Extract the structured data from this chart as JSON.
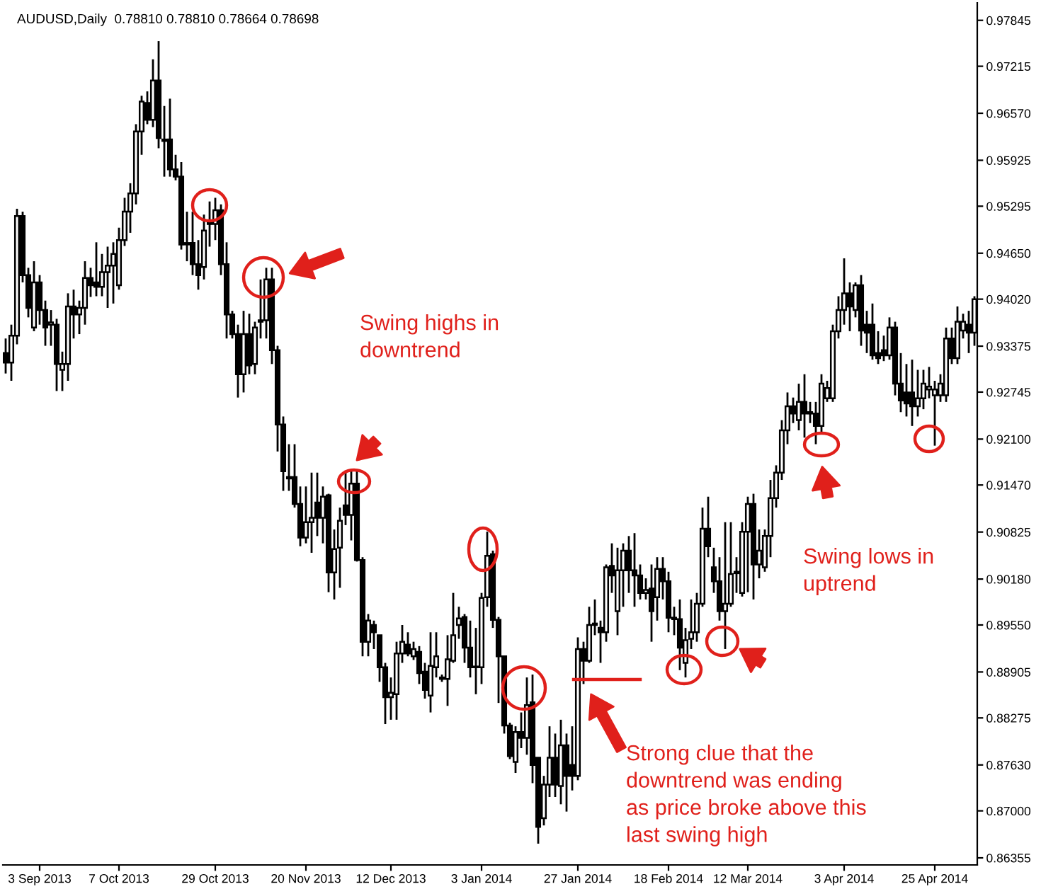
{
  "chart_data": {
    "type": "candlestick",
    "title": "AUDUSD,Daily  0.78810 0.78810 0.78664 0.78698",
    "categories": [
      null,
      null,
      null,
      null,
      null,
      null,
      "3 Sep 2013",
      null,
      null,
      null,
      null,
      null,
      null,
      null,
      null,
      null,
      null,
      null,
      null,
      null,
      "7 Oct 2013",
      null,
      null,
      null,
      null,
      null,
      null,
      null,
      null,
      null,
      null,
      null,
      null,
      null,
      null,
      null,
      null,
      "29 Oct 2013",
      null,
      null,
      null,
      null,
      null,
      null,
      null,
      null,
      null,
      null,
      null,
      null,
      null,
      null,
      null,
      "20 Nov 2013",
      null,
      null,
      null,
      null,
      null,
      null,
      null,
      null,
      null,
      null,
      null,
      null,
      null,
      null,
      "12 Dec 2013",
      null,
      null,
      null,
      null,
      null,
      null,
      null,
      null,
      null,
      null,
      null,
      null,
      null,
      null,
      null,
      "3 Jan 2014",
      null,
      null,
      null,
      null,
      null,
      null,
      null,
      null,
      null,
      null,
      null,
      null,
      null,
      null,
      null,
      null,
      "27 Jan 2014",
      null,
      null,
      null,
      null,
      null,
      null,
      null,
      null,
      null,
      null,
      null,
      null,
      null,
      null,
      null,
      "18 Feb 2014",
      null,
      null,
      null,
      null,
      null,
      null,
      null,
      null,
      null,
      null,
      null,
      null,
      null,
      "12 Mar 2014",
      null,
      null,
      null,
      null,
      null,
      null,
      null,
      null,
      null,
      null,
      null,
      null,
      null,
      null,
      null,
      null,
      "3 Apr 2014",
      null,
      null,
      null,
      null,
      null,
      null,
      null,
      null,
      null,
      null,
      null,
      null,
      null,
      null,
      null,
      "25 Apr 2014",
      null,
      null,
      null,
      null,
      null,
      null,
      null
    ],
    "ohlc": [
      [
        0.9328,
        0.9348,
        0.93,
        0.9315
      ],
      [
        0.9315,
        0.9367,
        0.929,
        0.9352
      ],
      [
        0.9352,
        0.9526,
        0.934,
        0.9516
      ],
      [
        0.9516,
        0.9522,
        0.9425,
        0.9435
      ],
      [
        0.9435,
        0.9445,
        0.9377,
        0.939
      ],
      [
        0.9363,
        0.9454,
        0.9358,
        0.9425
      ],
      [
        0.9425,
        0.9435,
        0.9367,
        0.9387
      ],
      [
        0.9387,
        0.94,
        0.9338,
        0.9363
      ],
      [
        0.9367,
        0.9387,
        0.9338,
        0.937
      ],
      [
        0.9367,
        0.9375,
        0.9276,
        0.9313
      ],
      [
        0.9305,
        0.933,
        0.9276,
        0.9313
      ],
      [
        0.9313,
        0.941,
        0.929,
        0.9392
      ],
      [
        0.9392,
        0.9415,
        0.9348,
        0.9381
      ],
      [
        0.9381,
        0.94,
        0.9354,
        0.939
      ],
      [
        0.939,
        0.9454,
        0.9367,
        0.9431
      ],
      [
        0.9431,
        0.9445,
        0.9405,
        0.9421
      ],
      [
        0.9425,
        0.948,
        0.9406,
        0.9419
      ],
      [
        0.9419,
        0.9464,
        0.9406,
        0.9439
      ],
      [
        0.9439,
        0.9474,
        0.939,
        0.9448
      ],
      [
        0.9448,
        0.948,
        0.9396,
        0.9464
      ],
      [
        0.9421,
        0.95,
        0.9415,
        0.9483
      ],
      [
        0.9483,
        0.9541,
        0.9475,
        0.9522
      ],
      [
        0.9522,
        0.9561,
        0.9493,
        0.9547
      ],
      [
        0.9547,
        0.9642,
        0.9532,
        0.9632
      ],
      [
        0.9632,
        0.9681,
        0.96,
        0.9673
      ],
      [
        0.9671,
        0.9687,
        0.9642,
        0.9648
      ],
      [
        0.9648,
        0.9731,
        0.9638,
        0.9702
      ],
      [
        0.9702,
        0.9756,
        0.9609,
        0.9623
      ],
      [
        0.9621,
        0.9667,
        0.957,
        0.9619
      ],
      [
        0.9621,
        0.9677,
        0.957,
        0.958
      ],
      [
        0.958,
        0.96,
        0.9565,
        0.957
      ],
      [
        0.957,
        0.959,
        0.947,
        0.9477
      ],
      [
        0.9477,
        0.9522,
        0.9454,
        0.9479
      ],
      [
        0.9479,
        0.9522,
        0.9435,
        0.945
      ],
      [
        0.945,
        0.9483,
        0.9415,
        0.9435
      ],
      [
        0.9446,
        0.9518,
        0.9429,
        0.9496
      ],
      [
        0.9505,
        0.9536,
        0.9474,
        0.9507
      ],
      [
        0.9505,
        0.9541,
        0.9483,
        0.9524
      ],
      [
        0.9524,
        0.9532,
        0.9435,
        0.945
      ],
      [
        0.945,
        0.948,
        0.9348,
        0.9381
      ],
      [
        0.9381,
        0.9386,
        0.9348,
        0.9354
      ],
      [
        0.9354,
        0.9367,
        0.9267,
        0.9299
      ],
      [
        0.9299,
        0.9386,
        0.9274,
        0.9354
      ],
      [
        0.9354,
        0.9382,
        0.9299,
        0.9311
      ],
      [
        0.9313,
        0.9371,
        0.9299,
        0.9363
      ],
      [
        0.9371,
        0.9429,
        0.9348,
        0.9373
      ],
      [
        0.9373,
        0.9445,
        0.9348,
        0.9429
      ],
      [
        0.9429,
        0.9445,
        0.9313,
        0.9332
      ],
      [
        0.9332,
        0.9338,
        0.9193,
        0.923
      ],
      [
        0.923,
        0.9241,
        0.9139,
        0.9166
      ],
      [
        0.9158,
        0.9203,
        0.9139,
        0.9156
      ],
      [
        0.9158,
        0.9203,
        0.9116,
        0.9121
      ],
      [
        0.9121,
        0.9145,
        0.9063,
        0.9075
      ],
      [
        0.9075,
        0.9145,
        0.9067,
        0.9096
      ],
      [
        0.9096,
        0.9164,
        0.9054,
        0.9102
      ],
      [
        0.9123,
        0.9164,
        0.9077,
        0.9102
      ],
      [
        0.9102,
        0.9145,
        0.9067,
        0.9131
      ],
      [
        0.9133,
        0.9135,
        0.9,
        0.9027
      ],
      [
        0.9027,
        0.9086,
        0.899,
        0.9059
      ],
      [
        0.9061,
        0.9116,
        0.9006,
        0.9098
      ],
      [
        0.9119,
        0.9164,
        0.9092,
        0.9106
      ],
      [
        0.9106,
        0.9168,
        0.9071,
        0.9149
      ],
      [
        0.9149,
        0.9168,
        0.9042,
        0.9044
      ],
      [
        0.9044,
        0.9048,
        0.8912,
        0.8932
      ],
      [
        0.8932,
        0.897,
        0.8912,
        0.8961
      ],
      [
        0.8955,
        0.8961,
        0.8922,
        0.8945
      ],
      [
        0.8941,
        0.8941,
        0.8877,
        0.8897
      ],
      [
        0.8897,
        0.8903,
        0.8819,
        0.8856
      ],
      [
        0.8856,
        0.8883,
        0.8825,
        0.8862
      ],
      [
        0.886,
        0.8932,
        0.8825,
        0.8916
      ],
      [
        0.8916,
        0.8955,
        0.8903,
        0.8932
      ],
      [
        0.8928,
        0.8945,
        0.8912,
        0.8916
      ],
      [
        0.8912,
        0.8932,
        0.8907,
        0.8922
      ],
      [
        0.8918,
        0.8926,
        0.8874,
        0.8889
      ],
      [
        0.8891,
        0.8903,
        0.8854,
        0.8866
      ],
      [
        0.8858,
        0.8945,
        0.8835,
        0.8899
      ],
      [
        0.8897,
        0.8945,
        0.8883,
        0.8912
      ],
      [
        0.8881,
        0.8887,
        0.8877,
        0.8883
      ],
      [
        0.8881,
        0.8941,
        0.8844,
        0.8908
      ],
      [
        0.8906,
        0.8999,
        0.8903,
        0.8941
      ],
      [
        0.8955,
        0.898,
        0.8936,
        0.8964
      ],
      [
        0.8966,
        0.897,
        0.8903,
        0.8924
      ],
      [
        0.8924,
        0.8961,
        0.8883,
        0.8897
      ],
      [
        0.8897,
        0.8951,
        0.886,
        0.8898
      ],
      [
        0.8897,
        0.8999,
        0.8874,
        0.8992
      ],
      [
        0.8993,
        0.9083,
        0.898,
        0.905
      ],
      [
        0.9052,
        0.9057,
        0.8951,
        0.8962
      ],
      [
        0.8962,
        0.8966,
        0.8848,
        0.8912
      ],
      [
        0.8912,
        0.8912,
        0.8806,
        0.8817
      ],
      [
        0.8817,
        0.8821,
        0.8771,
        0.8775
      ],
      [
        0.8767,
        0.8816,
        0.8752,
        0.8808
      ],
      [
        0.8808,
        0.8835,
        0.8786,
        0.88
      ],
      [
        0.88,
        0.8883,
        0.8777,
        0.8845
      ],
      [
        0.8849,
        0.8887,
        0.8738,
        0.8763
      ],
      [
        0.8773,
        0.8773,
        0.8655,
        0.8678
      ],
      [
        0.869,
        0.8748,
        0.868,
        0.8736
      ],
      [
        0.8736,
        0.8816,
        0.8719,
        0.8773
      ],
      [
        0.8773,
        0.8806,
        0.8719,
        0.8736
      ],
      [
        0.8734,
        0.8825,
        0.8709,
        0.879
      ],
      [
        0.879,
        0.8806,
        0.8699,
        0.8748
      ],
      [
        0.8763,
        0.8816,
        0.8728,
        0.8748
      ],
      [
        0.8748,
        0.8938,
        0.8742,
        0.8922
      ],
      [
        0.8922,
        0.8932,
        0.8874,
        0.8906
      ],
      [
        0.8906,
        0.898,
        0.8903,
        0.8955
      ],
      [
        0.8955,
        0.899,
        0.8941,
        0.8957
      ],
      [
        0.8951,
        0.8961,
        0.8903,
        0.8945
      ],
      [
        0.8945,
        0.9038,
        0.8932,
        0.9034
      ],
      [
        0.9036,
        0.9067,
        0.8999,
        0.9023
      ],
      [
        0.8974,
        0.9061,
        0.8941,
        0.903
      ],
      [
        0.903,
        0.9067,
        0.898,
        0.9057
      ],
      [
        0.9057,
        0.9077,
        0.8999,
        0.903
      ],
      [
        0.903,
        0.9081,
        0.898,
        0.9023
      ],
      [
        0.9023,
        0.9038,
        0.899,
        0.8999
      ],
      [
        0.8999,
        0.9019,
        0.899,
        0.9003
      ],
      [
        0.9005,
        0.9038,
        0.8932,
        0.8974
      ],
      [
        0.8993,
        0.9048,
        0.8961,
        0.9032
      ],
      [
        0.9032,
        0.9048,
        0.899,
        0.9015
      ],
      [
        0.9015,
        0.9028,
        0.8945,
        0.8965
      ],
      [
        0.8965,
        0.898,
        0.8941,
        0.8963
      ],
      [
        0.8963,
        0.899,
        0.8893,
        0.8924
      ],
      [
        0.8903,
        0.8951,
        0.8883,
        0.8934
      ],
      [
        0.8936,
        0.899,
        0.8922,
        0.8945
      ],
      [
        0.8945,
        0.8999,
        0.8932,
        0.8984
      ],
      [
        0.8984,
        0.9116,
        0.898,
        0.9087
      ],
      [
        0.9087,
        0.9131,
        0.9048,
        0.9063
      ],
      [
        0.9034,
        0.9061,
        0.8999,
        0.9015
      ],
      [
        0.9015,
        0.9048,
        0.8961,
        0.8974
      ],
      [
        0.8974,
        0.9096,
        0.8922,
        0.8984
      ],
      [
        0.8984,
        0.9096,
        0.898,
        0.9025
      ],
      [
        0.9026,
        0.9048,
        0.8999,
        0.9028
      ],
      [
        0.8999,
        0.9096,
        0.8994,
        0.9083
      ],
      [
        0.9083,
        0.9131,
        0.9,
        0.9121
      ],
      [
        0.9121,
        0.9135,
        0.899,
        0.9038
      ],
      [
        0.9038,
        0.9086,
        0.9019,
        0.9057
      ],
      [
        0.9034,
        0.9086,
        0.9028,
        0.9077
      ],
      [
        0.9077,
        0.9154,
        0.9048,
        0.9129
      ],
      [
        0.9129,
        0.9174,
        0.9116,
        0.9164
      ],
      [
        0.9164,
        0.9236,
        0.9154,
        0.9222
      ],
      [
        0.9222,
        0.9274,
        0.9203,
        0.9255
      ],
      [
        0.9255,
        0.9267,
        0.9232,
        0.9245
      ],
      [
        0.9236,
        0.9286,
        0.9222,
        0.9261
      ],
      [
        0.9261,
        0.9299,
        0.9212,
        0.9245
      ],
      [
        0.9245,
        0.9261,
        0.9232,
        0.9247
      ],
      [
        0.9245,
        0.9261,
        0.9203,
        0.9228
      ],
      [
        0.9228,
        0.9299,
        0.9218,
        0.9286
      ],
      [
        0.9266,
        0.929,
        0.9261,
        0.928
      ],
      [
        0.9266,
        0.9367,
        0.9261,
        0.9358
      ],
      [
        0.9358,
        0.9406,
        0.9348,
        0.9387
      ],
      [
        0.9387,
        0.9458,
        0.9367,
        0.941
      ],
      [
        0.941,
        0.9425,
        0.9358,
        0.9392
      ],
      [
        0.9387,
        0.9425,
        0.9377,
        0.9421
      ],
      [
        0.9421,
        0.9435,
        0.9338,
        0.9359
      ],
      [
        0.9367,
        0.9386,
        0.9328,
        0.9356
      ],
      [
        0.9367,
        0.9396,
        0.9319,
        0.9325
      ],
      [
        0.9328,
        0.9358,
        0.9313,
        0.9321
      ],
      [
        0.9332,
        0.9352,
        0.9317,
        0.9325
      ],
      [
        0.9325,
        0.9377,
        0.9319,
        0.9363
      ],
      [
        0.9363,
        0.9371,
        0.927,
        0.9286
      ],
      [
        0.9286,
        0.9328,
        0.9247,
        0.9263
      ],
      [
        0.9274,
        0.9313,
        0.9241,
        0.9259
      ],
      [
        0.9274,
        0.9319,
        0.9228,
        0.9255
      ],
      [
        0.9255,
        0.9305,
        0.9241,
        0.9266
      ],
      [
        0.9266,
        0.9305,
        0.9251,
        0.9286
      ],
      [
        0.9278,
        0.9309,
        0.9266,
        0.9282
      ],
      [
        0.927,
        0.929,
        0.9201,
        0.9278
      ],
      [
        0.927,
        0.9299,
        0.9261,
        0.9286
      ],
      [
        0.927,
        0.9363,
        0.9261,
        0.9348
      ],
      [
        0.9348,
        0.9363,
        0.9313,
        0.9321
      ],
      [
        0.9321,
        0.9392,
        0.9313,
        0.9371
      ],
      [
        0.9359,
        0.9382,
        0.9348,
        0.9371
      ],
      [
        0.9367,
        0.9386,
        0.9328,
        0.9356
      ],
      [
        0.9356,
        0.9406,
        0.9338,
        0.9402
      ]
    ],
    "ylim": [
      0.86258,
      0.98085
    ],
    "yticks": [
      {
        "value": 0.97845,
        "label": "0.97845"
      },
      {
        "value": 0.97215,
        "label": "0.97215"
      },
      {
        "value": 0.9657,
        "label": "0.96570"
      },
      {
        "value": 0.95925,
        "label": "0.95925"
      },
      {
        "value": 0.95295,
        "label": "0.95295"
      },
      {
        "value": 0.9465,
        "label": "0.94650"
      },
      {
        "value": 0.9402,
        "label": "0.94020"
      },
      {
        "value": 0.93375,
        "label": "0.93375"
      },
      {
        "value": 0.92745,
        "label": "0.92745"
      },
      {
        "value": 0.921,
        "label": "0.92100"
      },
      {
        "value": 0.9147,
        "label": "0.91470"
      },
      {
        "value": 0.90825,
        "label": "0.90825"
      },
      {
        "value": 0.9018,
        "label": "0.90180"
      },
      {
        "value": 0.8955,
        "label": "0.89550"
      },
      {
        "value": 0.88905,
        "label": "0.88905"
      },
      {
        "value": 0.88275,
        "label": "0.88275"
      },
      {
        "value": 0.8763,
        "label": "0.87630"
      },
      {
        "value": 0.87,
        "label": "0.87000"
      },
      {
        "value": 0.86355,
        "label": "0.86355"
      }
    ],
    "annotations": [
      "Swing highs in\ndowntrend",
      "Swing lows in\nuptrend",
      "Strong clue that the\ndowntrend was ending\nas price broke above this\nlast swing high"
    ],
    "grid": false,
    "legend": false
  }
}
